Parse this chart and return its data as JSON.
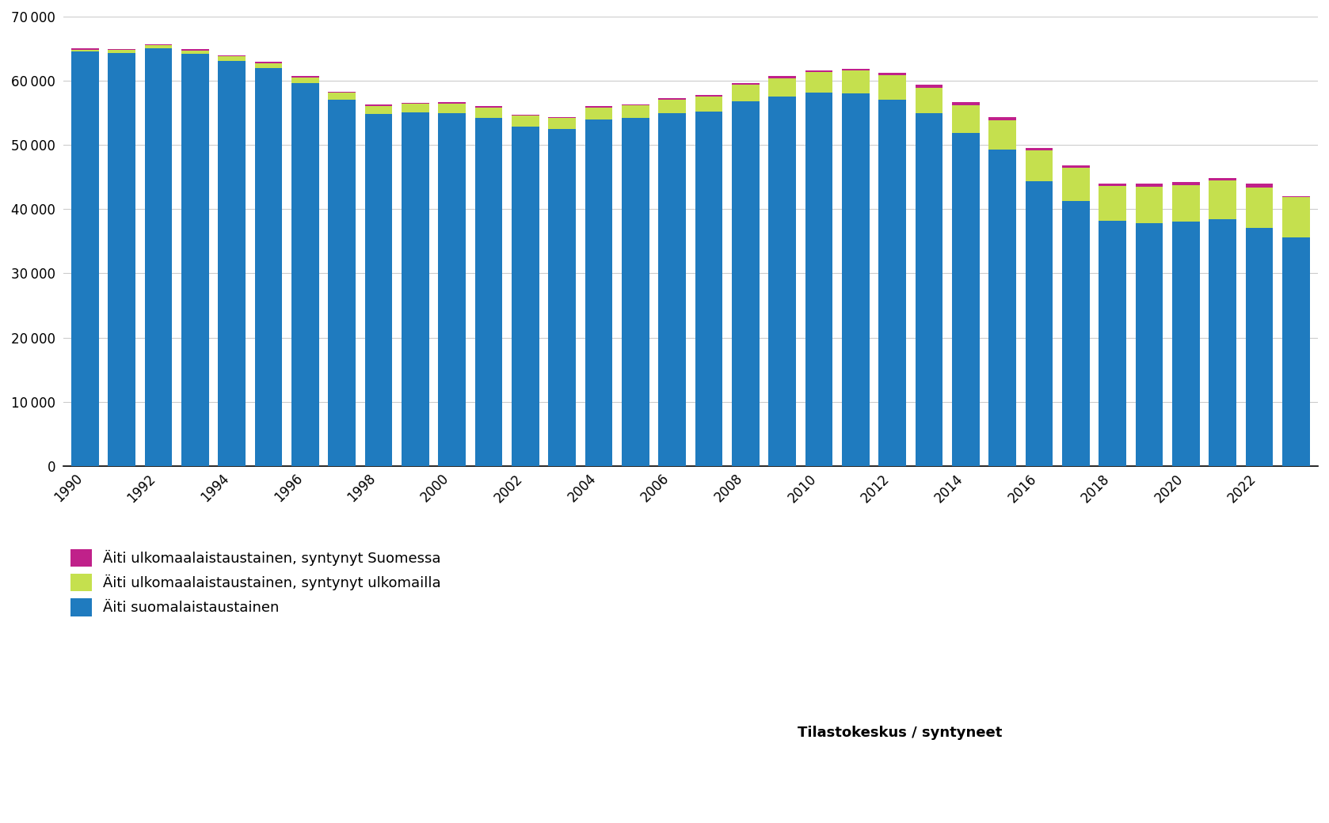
{
  "years": [
    1990,
    1991,
    1992,
    1993,
    1994,
    1995,
    1996,
    1997,
    1998,
    1999,
    2000,
    2001,
    2002,
    2003,
    2004,
    2005,
    2006,
    2007,
    2008,
    2009,
    2010,
    2011,
    2012,
    2013,
    2014,
    2015,
    2016,
    2017,
    2018,
    2019,
    2020,
    2021,
    2022,
    2023
  ],
  "finnish_background": [
    64559,
    64355,
    65077,
    64174,
    63130,
    61962,
    59605,
    57069,
    54808,
    55048,
    54930,
    54220,
    52887,
    52524,
    54017,
    54235,
    54996,
    55228,
    56833,
    57578,
    58120,
    58046,
    57104,
    54916,
    51909,
    49333,
    44344,
    41302,
    38141,
    37844,
    38050,
    38480,
    37136,
    35650
  ],
  "foreign_born_abroad": [
    300,
    400,
    450,
    550,
    700,
    800,
    900,
    1100,
    1300,
    1400,
    1550,
    1600,
    1700,
    1700,
    1800,
    1900,
    2100,
    2350,
    2600,
    2800,
    3200,
    3500,
    3700,
    4000,
    4300,
    4500,
    4800,
    5100,
    5450,
    5700,
    5700,
    6000,
    6200,
    6200
  ],
  "foreign_born_finland": [
    141,
    145,
    173,
    176,
    170,
    138,
    195,
    131,
    192,
    152,
    170,
    180,
    113,
    124,
    183,
    165,
    204,
    222,
    217,
    322,
    280,
    354,
    396,
    484,
    491,
    467,
    356,
    398,
    409,
    456,
    450,
    420,
    664,
    150
  ],
  "color_finnish": "#1F7BBF",
  "color_foreign_abroad": "#C5E04E",
  "color_foreign_finland": "#C0218A",
  "legend_labels": [
    "Äiti ulkomaalaistaustainen, syntynyt Suomessa",
    "Äiti ulkomaalaistaustainen, syntynyt ulkomailla",
    "Äiti suomalaistaustainen"
  ],
  "ylim": [
    0,
    70000
  ],
  "yticks": [
    0,
    10000,
    20000,
    30000,
    40000,
    50000,
    60000,
    70000
  ],
  "source_text": "Tilastokeskus / syntyneet",
  "background_color": "#ffffff",
  "bar_width": 0.75
}
